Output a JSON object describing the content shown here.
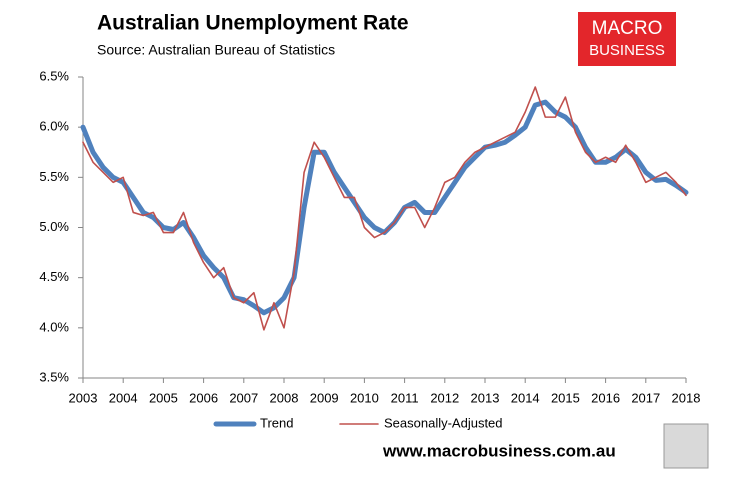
{
  "chart_data": {
    "type": "line",
    "title": "Australian Unemployment Rate",
    "subtitle": "Source: Australian Bureau of Statistics",
    "logo": [
      "MACRO",
      "BUSINESS"
    ],
    "footer": "www.macrobusiness.com.au",
    "x": [
      2003,
      2003.25,
      2003.5,
      2003.75,
      2004,
      2004.25,
      2004.5,
      2004.75,
      2005,
      2005.25,
      2005.5,
      2005.75,
      2006,
      2006.25,
      2006.5,
      2006.75,
      2007,
      2007.25,
      2007.5,
      2007.75,
      2008,
      2008.25,
      2008.5,
      2008.75,
      2009,
      2009.25,
      2009.5,
      2009.75,
      2010,
      2010.25,
      2010.5,
      2010.75,
      2011,
      2011.25,
      2011.5,
      2011.75,
      2012,
      2012.25,
      2012.5,
      2012.75,
      2013,
      2013.25,
      2013.5,
      2013.75,
      2014,
      2014.25,
      2014.5,
      2014.75,
      2015,
      2015.25,
      2015.5,
      2015.75,
      2016,
      2016.25,
      2016.5,
      2016.75,
      2017,
      2017.25,
      2017.5,
      2017.75,
      2018
    ],
    "series": [
      {
        "name": "Trend",
        "color": "#4f81bd",
        "values": [
          6.0,
          5.75,
          5.6,
          5.5,
          5.45,
          5.3,
          5.15,
          5.1,
          5.0,
          4.98,
          5.05,
          4.9,
          4.72,
          4.6,
          4.5,
          4.3,
          4.28,
          4.22,
          4.15,
          4.2,
          4.3,
          4.5,
          5.2,
          5.75,
          5.75,
          5.55,
          5.4,
          5.25,
          5.1,
          5.0,
          4.95,
          5.05,
          5.2,
          5.25,
          5.15,
          5.15,
          5.3,
          5.45,
          5.6,
          5.7,
          5.8,
          5.82,
          5.85,
          5.92,
          6.0,
          6.22,
          6.25,
          6.15,
          6.1,
          6.0,
          5.8,
          5.65,
          5.65,
          5.7,
          5.78,
          5.7,
          5.55,
          5.47,
          5.48,
          5.42,
          5.35
        ]
      },
      {
        "name": "Seasonally-Adjusted",
        "color": "#c0504d",
        "values": [
          5.85,
          5.65,
          5.55,
          5.45,
          5.5,
          5.15,
          5.12,
          5.15,
          4.95,
          4.95,
          5.15,
          4.85,
          4.65,
          4.5,
          4.6,
          4.3,
          4.25,
          4.35,
          3.98,
          4.25,
          4.0,
          4.55,
          5.55,
          5.85,
          5.7,
          5.5,
          5.3,
          5.3,
          5.0,
          4.9,
          4.95,
          5.05,
          5.2,
          5.2,
          5.0,
          5.2,
          5.45,
          5.5,
          5.65,
          5.75,
          5.8,
          5.85,
          5.9,
          5.95,
          6.15,
          6.4,
          6.1,
          6.1,
          6.3,
          5.95,
          5.75,
          5.65,
          5.7,
          5.65,
          5.82,
          5.65,
          5.45,
          5.5,
          5.55,
          5.45,
          5.32
        ]
      }
    ],
    "xlim": [
      2003,
      2018
    ],
    "xticks": [
      2003,
      2004,
      2005,
      2006,
      2007,
      2008,
      2009,
      2010,
      2011,
      2012,
      2013,
      2014,
      2015,
      2016,
      2017,
      2018
    ],
    "ylim": [
      3.5,
      6.5
    ],
    "yticks": [
      {
        "value": 3.5,
        "label": "3.5%"
      },
      {
        "value": 4.0,
        "label": "4.0%"
      },
      {
        "value": 4.5,
        "label": "4.5%"
      },
      {
        "value": 5.0,
        "label": "5.0%"
      },
      {
        "value": 5.5,
        "label": "5.5%"
      },
      {
        "value": 6.0,
        "label": "6.0%"
      },
      {
        "value": 6.5,
        "label": "6.5%"
      }
    ],
    "grid": false,
    "legend": "bottom"
  }
}
